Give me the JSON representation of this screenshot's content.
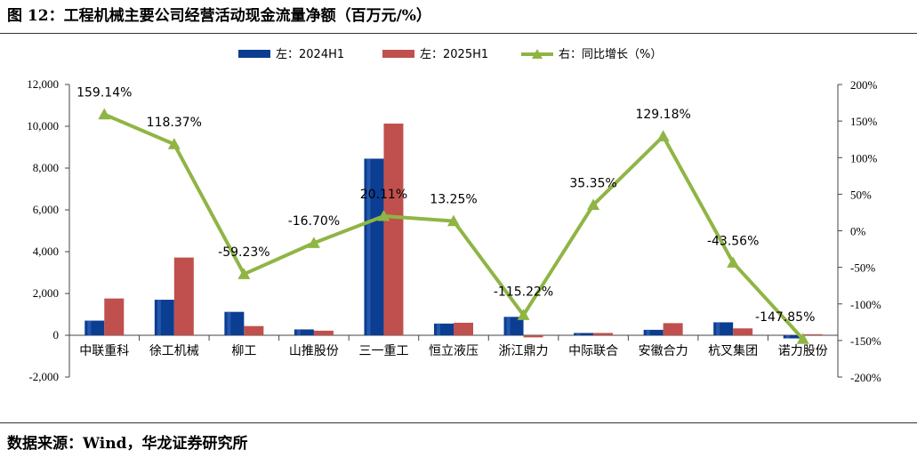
{
  "title": "图 12：工程机械主要公司经营活动现金流量净额（百万元/%）",
  "source": "数据来源：Wind，华龙证券研究所",
  "colors": {
    "bar2024": "#0b3d91",
    "bar2025": "#c0504d",
    "line": "#8fb545"
  },
  "chart_data": {
    "type": "bar",
    "categories": [
      "中联重科",
      "徐工机械",
      "柳工",
      "山推股份",
      "三一重工",
      "恒立液压",
      "浙江鼎力",
      "中际联合",
      "安徽合力",
      "杭叉集团",
      "诺力股份"
    ],
    "series": [
      {
        "name": "左：2024H1",
        "type": "bar",
        "axis": "left",
        "values": [
          700,
          1700,
          1120,
          280,
          8450,
          560,
          880,
          110,
          260,
          620,
          -150
        ]
      },
      {
        "name": "左：2025H1",
        "type": "bar",
        "axis": "left",
        "values": [
          1760,
          3720,
          440,
          220,
          10130,
          600,
          -100,
          110,
          580,
          330,
          50
        ]
      },
      {
        "name": "右：同比增长（%）",
        "type": "line",
        "axis": "right",
        "values": [
          159.14,
          118.37,
          -59.23,
          -16.7,
          20.11,
          13.25,
          -115.22,
          35.35,
          129.18,
          -43.56,
          -147.85
        ]
      }
    ],
    "data_labels": [
      "159.14%",
      "118.37%",
      "-59.23%",
      "-16.70%",
      "20.11%",
      "13.25%",
      "-115.22%",
      "35.35%",
      "129.18%",
      "-43.56%",
      "-147.85%"
    ],
    "left_axis": {
      "min": -2000,
      "max": 12000,
      "ticks": [
        "-2,000",
        "0",
        "2,000",
        "4,000",
        "6,000",
        "8,000",
        "10,000",
        "12,000"
      ]
    },
    "right_axis": {
      "min": -200,
      "max": 200,
      "ticks": [
        "-200%",
        "-150%",
        "-100%",
        "-50%",
        "0%",
        "50%",
        "100%",
        "150%",
        "200%"
      ]
    },
    "legend_position": "top-center",
    "grid": false
  }
}
